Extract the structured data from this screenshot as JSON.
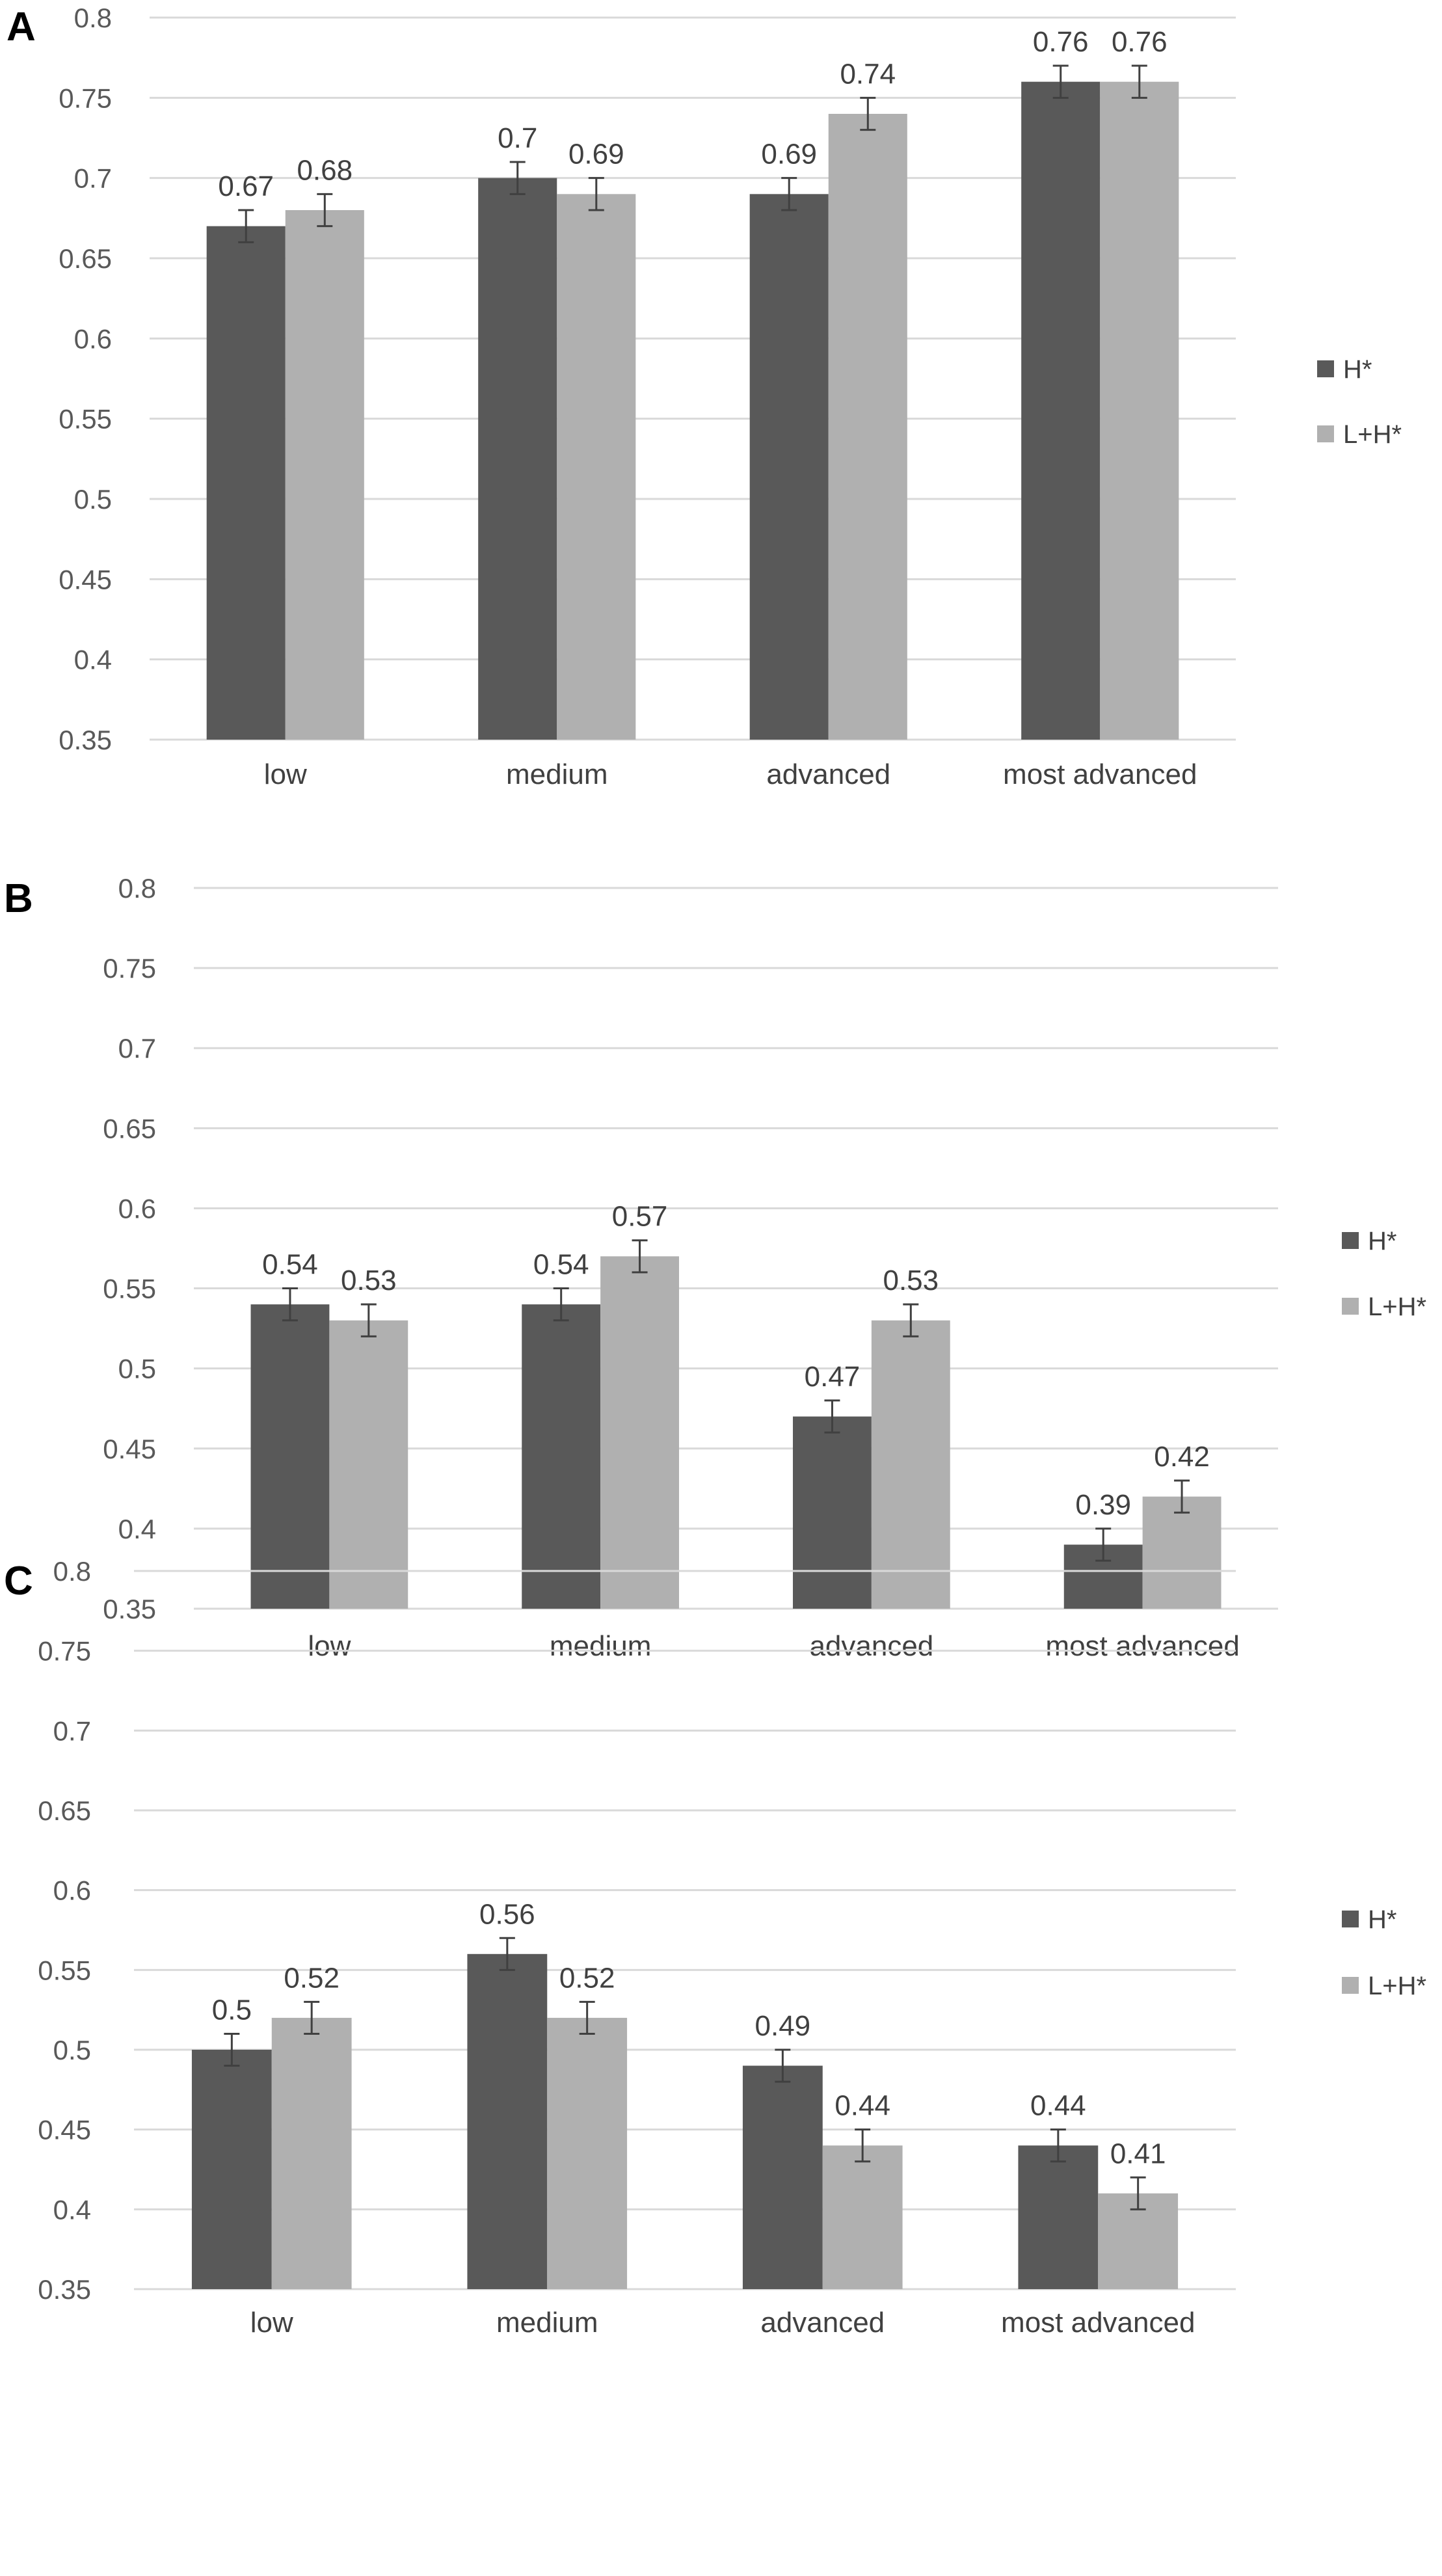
{
  "chart_data": [
    {
      "type": "bar",
      "panel_label": "A",
      "categories": [
        "low",
        "medium",
        "advanced",
        "most advanced"
      ],
      "series": [
        {
          "name": "H*",
          "color": "#595959",
          "values": [
            0.67,
            0.7,
            0.69,
            0.76
          ],
          "labels": [
            "0.67",
            "0.7",
            "0.69",
            "0.76"
          ],
          "errors": [
            0.01,
            0.01,
            0.01,
            0.01
          ]
        },
        {
          "name": "L+H*",
          "color": "#b0b0b0",
          "values": [
            0.68,
            0.69,
            0.74,
            0.76
          ],
          "labels": [
            "0.68",
            "0.69",
            "0.74",
            "0.76"
          ],
          "errors": [
            0.01,
            0.01,
            0.01,
            0.01
          ]
        }
      ],
      "ylim": [
        0.35,
        0.8
      ],
      "yticks": [
        0.35,
        0.4,
        0.45,
        0.5,
        0.55,
        0.6,
        0.65,
        0.7,
        0.75,
        0.8
      ],
      "ytick_labels": [
        "0.35",
        "0.4",
        "0.45",
        "0.5",
        "0.55",
        "0.6",
        "0.65",
        "0.7",
        "0.75",
        "0.8"
      ],
      "grid": true,
      "legend_position": "right"
    },
    {
      "type": "bar",
      "panel_label": "B",
      "categories": [
        "low",
        "medium",
        "advanced",
        "most advanced"
      ],
      "series": [
        {
          "name": "H*",
          "color": "#595959",
          "values": [
            0.54,
            0.54,
            0.47,
            0.39
          ],
          "labels": [
            "0.54",
            "0.54",
            "0.47",
            "0.39"
          ],
          "errors": [
            0.01,
            0.01,
            0.01,
            0.01
          ]
        },
        {
          "name": "L+H*",
          "color": "#b0b0b0",
          "values": [
            0.53,
            0.57,
            0.53,
            0.42
          ],
          "labels": [
            "0.53",
            "0.57",
            "0.53",
            "0.42"
          ],
          "errors": [
            0.01,
            0.01,
            0.01,
            0.01
          ]
        }
      ],
      "ylim": [
        0.35,
        0.8
      ],
      "yticks": [
        0.35,
        0.4,
        0.45,
        0.5,
        0.55,
        0.6,
        0.65,
        0.7,
        0.75,
        0.8
      ],
      "ytick_labels": [
        "0.35",
        "0.4",
        "0.45",
        "0.5",
        "0.55",
        "0.6",
        "0.65",
        "0.7",
        "0.75",
        "0.8"
      ],
      "grid": true,
      "legend_position": "right"
    },
    {
      "type": "bar",
      "panel_label": "C",
      "categories": [
        "low",
        "medium",
        "advanced",
        "most advanced"
      ],
      "series": [
        {
          "name": "H*",
          "color": "#595959",
          "values": [
            0.5,
            0.56,
            0.49,
            0.44
          ],
          "labels": [
            "0.5",
            "0.56",
            "0.49",
            "0.44"
          ],
          "errors": [
            0.01,
            0.01,
            0.01,
            0.01
          ]
        },
        {
          "name": "L+H*",
          "color": "#b0b0b0",
          "values": [
            0.52,
            0.52,
            0.44,
            0.41
          ],
          "labels": [
            "0.52",
            "0.52",
            "0.44",
            "0.41"
          ],
          "errors": [
            0.01,
            0.01,
            0.01,
            0.01
          ]
        }
      ],
      "ylim": [
        0.35,
        0.8
      ],
      "yticks": [
        0.35,
        0.4,
        0.45,
        0.5,
        0.55,
        0.6,
        0.65,
        0.7,
        0.75,
        0.8
      ],
      "ytick_labels": [
        "0.35",
        "0.4",
        "0.45",
        "0.5",
        "0.55",
        "0.6",
        "0.65",
        "0.7",
        "0.75",
        "0.8"
      ],
      "grid": true,
      "legend_position": "right"
    }
  ]
}
